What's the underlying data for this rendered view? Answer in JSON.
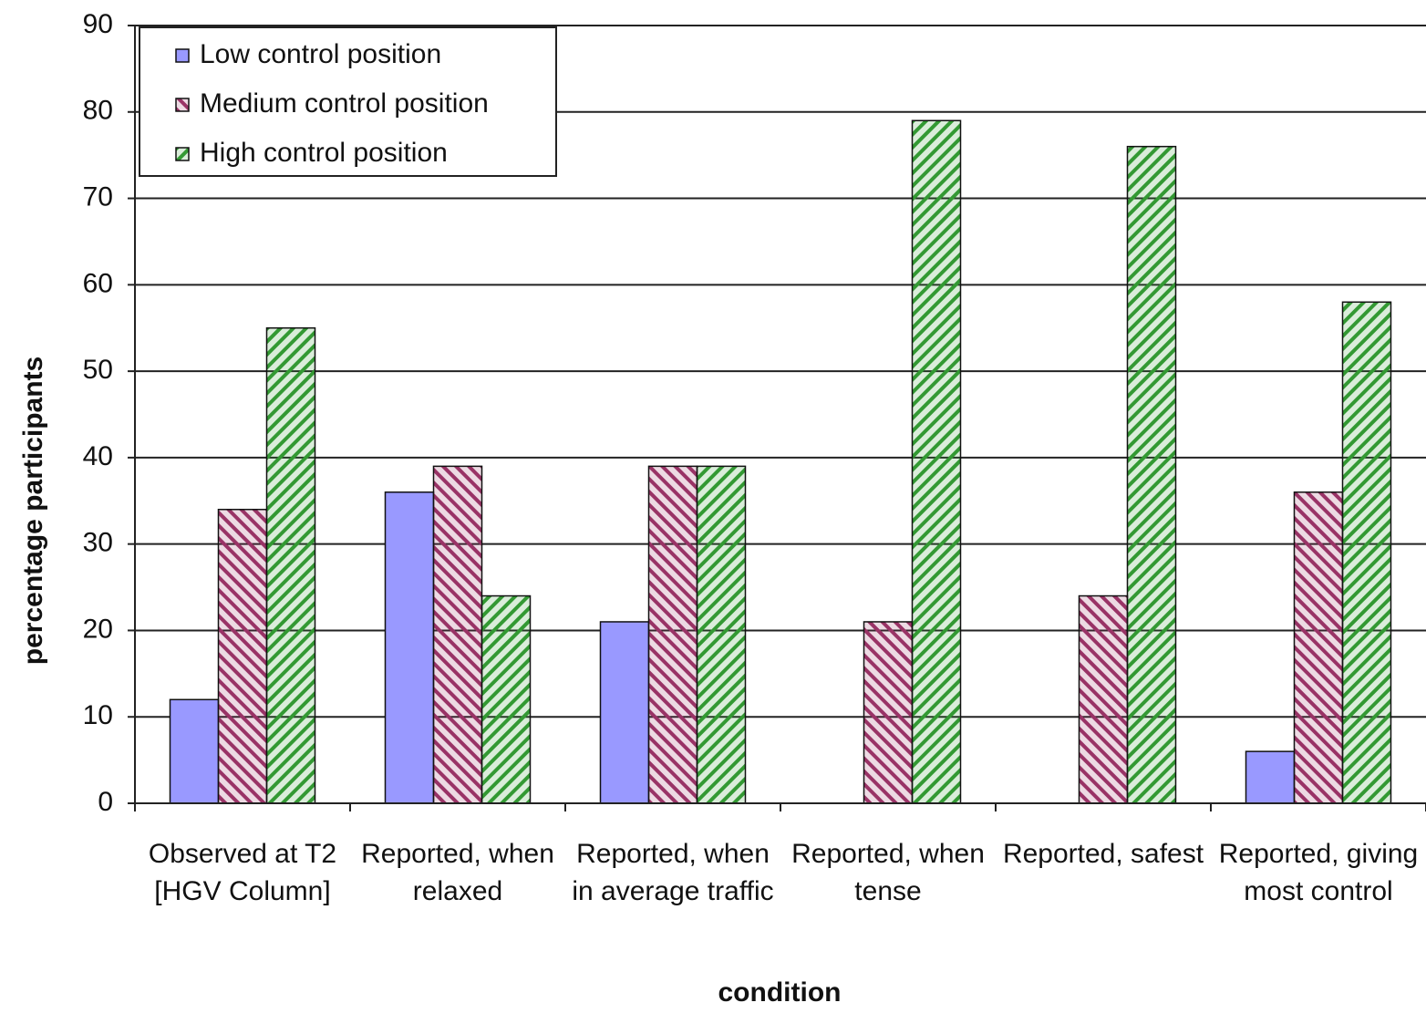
{
  "chart_data": {
    "type": "bar",
    "categories": [
      "Observed at T2 [HGV Column]",
      "Reported, when relaxed",
      "Reported, when in average traffic",
      "Reported, when tense",
      "Reported, safest",
      "Reported, giving most control"
    ],
    "series": [
      {
        "name": "Low control position",
        "color": "#9999ff",
        "pattern": "solid",
        "values": [
          12,
          36,
          21,
          0,
          0,
          6
        ]
      },
      {
        "name": "Medium control position",
        "color": "#993366",
        "pattern": "hatch",
        "values": [
          34,
          39,
          39,
          21,
          24,
          36
        ]
      },
      {
        "name": "High control position",
        "color": "#339933",
        "pattern": "hatch",
        "values": [
          55,
          24,
          39,
          79,
          76,
          58
        ]
      }
    ],
    "xlabel": "condition",
    "ylabel": "percentage participants",
    "ylim": [
      0,
      90
    ],
    "yticks": [
      0,
      10,
      20,
      30,
      40,
      50,
      60,
      70,
      80,
      90
    ],
    "grid": true,
    "legend": "upper left"
  }
}
